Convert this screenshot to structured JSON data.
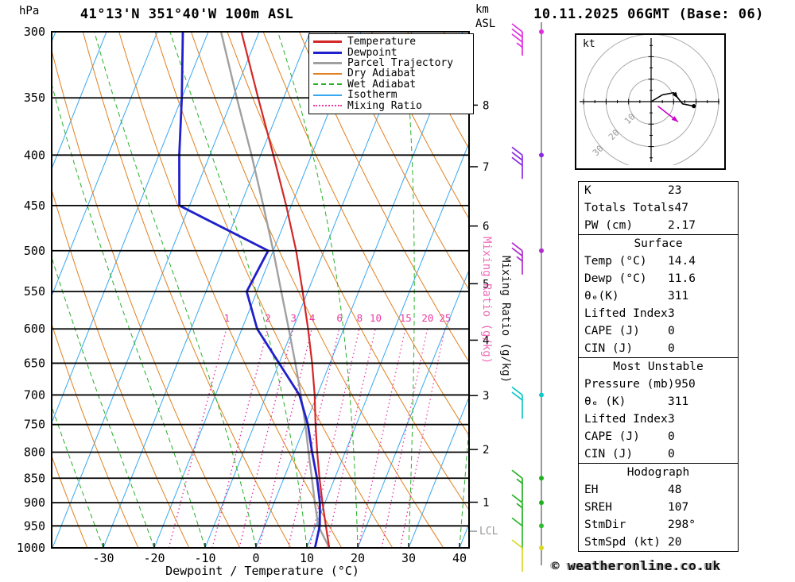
{
  "page": {
    "title_left": "41°13'N 351°40'W 100m ASL",
    "title_right": "10.11.2025 06GMT (Base: 06)",
    "pressure_unit": "hPa",
    "km_unit": "km",
    "asl_label": "ASL",
    "copyright": "© weatheronline.co.uk"
  },
  "axes": {
    "pressure_ticks": [
      300,
      350,
      400,
      450,
      500,
      550,
      600,
      650,
      700,
      750,
      800,
      850,
      900,
      950,
      1000
    ],
    "temperature_ticks": [
      -30,
      -20,
      -10,
      0,
      10,
      20,
      30,
      40
    ],
    "x_axis_label": "Dewpoint / Temperature (°C)",
    "km_ticks": [
      {
        "km": 1,
        "hpa": 899
      },
      {
        "km": 2,
        "hpa": 795
      },
      {
        "km": 3,
        "hpa": 701
      },
      {
        "km": 4,
        "hpa": 616
      },
      {
        "km": 5,
        "hpa": 540
      },
      {
        "km": 6,
        "hpa": 472
      },
      {
        "km": 7,
        "hpa": 411
      },
      {
        "km": 8,
        "hpa": 356
      }
    ],
    "mixing_ratio_lines": [
      1,
      2,
      3,
      4,
      6,
      8,
      10,
      15,
      20,
      25
    ],
    "mixing_ratio_axis_label": "Mixing Ratio (g/kg)",
    "lcl": {
      "label": "LCL",
      "hpa": 962
    }
  },
  "chart_data": {
    "type": "line",
    "variant": "skew-t log-p sounding",
    "pressure_range_hpa": [
      300,
      1000
    ],
    "temperature_range_c": [
      -40,
      42
    ],
    "grid": "on",
    "series": [
      {
        "name": "Temperature",
        "color": "#d42727",
        "points_p_c": [
          [
            1000,
            14.4
          ],
          [
            950,
            12.0
          ],
          [
            900,
            9.5
          ],
          [
            850,
            7.0
          ],
          [
            800,
            4.5
          ],
          [
            750,
            2.0
          ],
          [
            700,
            -0.5
          ],
          [
            650,
            -3.5
          ],
          [
            600,
            -7.0
          ],
          [
            550,
            -11.0
          ],
          [
            500,
            -15.5
          ],
          [
            450,
            -21.0
          ],
          [
            400,
            -27.5
          ],
          [
            350,
            -35.0
          ],
          [
            300,
            -43.5
          ]
        ]
      },
      {
        "name": "Dewpoint",
        "color": "#2020cc",
        "points_p_c": [
          [
            1000,
            11.6
          ],
          [
            950,
            10.8
          ],
          [
            900,
            9.0
          ],
          [
            850,
            6.5
          ],
          [
            800,
            3.5
          ],
          [
            750,
            0.5
          ],
          [
            700,
            -3.5
          ],
          [
            650,
            -10.0
          ],
          [
            600,
            -17.0
          ],
          [
            550,
            -22.0
          ],
          [
            500,
            -21.0
          ],
          [
            450,
            -42.0
          ],
          [
            400,
            -46.0
          ],
          [
            350,
            -50.0
          ],
          [
            300,
            -55.0
          ]
        ]
      },
      {
        "name": "Parcel Trajectory",
        "color": "#a0a0a0",
        "points_p_c": [
          [
            1000,
            14.4
          ],
          [
            950,
            10.5
          ],
          [
            900,
            8.0
          ],
          [
            850,
            5.5
          ],
          [
            800,
            2.8
          ],
          [
            750,
            0.0
          ],
          [
            700,
            -3.2
          ],
          [
            650,
            -6.8
          ],
          [
            600,
            -10.8
          ],
          [
            550,
            -15.2
          ],
          [
            500,
            -20.0
          ],
          [
            450,
            -25.5
          ],
          [
            400,
            -31.8
          ],
          [
            350,
            -39.2
          ],
          [
            300,
            -47.5
          ]
        ]
      }
    ],
    "background_lines": {
      "isotherms_c": {
        "min": -120,
        "max": 40,
        "step": 10,
        "color": "#38a8f0"
      },
      "dry_adiabats_k": {
        "min": 240,
        "max": 460,
        "step": 10,
        "color": "#e0801f"
      },
      "wet_adiabats_c": {
        "min": -60,
        "max": 40,
        "step": 10,
        "color": "#28b028"
      },
      "mixing_ratio_color": "#ea3aa2",
      "grid_color": "#000000"
    }
  },
  "legend": {
    "items": [
      {
        "label": "Temperature",
        "color": "#d42727",
        "style": "solid",
        "weight": 3
      },
      {
        "label": "Dewpoint",
        "color": "#2020cc",
        "style": "solid",
        "weight": 3
      },
      {
        "label": "Parcel Trajectory",
        "color": "#a0a0a0",
        "style": "solid",
        "weight": 3
      },
      {
        "label": "Dry Adiabat",
        "color": "#e0801f",
        "style": "solid",
        "weight": 2
      },
      {
        "label": "Wet Adiabat",
        "color": "#28b028",
        "style": "dashed",
        "weight": 2
      },
      {
        "label": "Isotherm",
        "color": "#38a8f0",
        "style": "solid",
        "weight": 2
      },
      {
        "label": "Mixing Ratio",
        "color": "#ea3aa2",
        "style": "dotted",
        "weight": 2
      }
    ]
  },
  "winds": {
    "barbs": [
      {
        "p": 300,
        "color": "#e02ae0",
        "full": 3,
        "half": 1
      },
      {
        "p": 400,
        "color": "#8a2ae0",
        "full": 3,
        "half": 0
      },
      {
        "p": 500,
        "color": "#b02ad0",
        "full": 2,
        "half": 1
      },
      {
        "p": 700,
        "color": "#10c8c8",
        "full": 2,
        "half": 0
      },
      {
        "p": 850,
        "color": "#20b020",
        "full": 1,
        "half": 1
      },
      {
        "p": 900,
        "color": "#20b020",
        "full": 1,
        "half": 1
      },
      {
        "p": 950,
        "color": "#30bb30",
        "full": 1,
        "half": 0
      },
      {
        "p": 1000,
        "color": "#d8d820",
        "full": 1,
        "half": 0
      }
    ]
  },
  "hodograph": {
    "unit": "kt",
    "rings_kt": [
      10,
      20,
      30
    ],
    "ring_labels": [
      "10",
      "20",
      "30"
    ],
    "trace_kt": [
      [
        0,
        0
      ],
      [
        5,
        3
      ],
      [
        10,
        4
      ],
      [
        14,
        -1
      ],
      [
        19,
        -2
      ]
    ],
    "storm_motion_kt": [
      [
        3,
        -2
      ],
      [
        12,
        -9
      ]
    ],
    "storm_color": "#cc00cc"
  },
  "panel": {
    "sections": [
      {
        "rows": [
          [
            "K",
            "23"
          ],
          [
            "Totals Totals",
            "47"
          ],
          [
            "PW (cm)",
            "2.17"
          ]
        ]
      },
      {
        "header": "Surface",
        "rows": [
          [
            "Temp (°C)",
            "14.4"
          ],
          [
            "Dewp (°C)",
            "11.6"
          ],
          [
            "θₑ(K)",
            "311"
          ],
          [
            "Lifted Index",
            "3"
          ],
          [
            "CAPE (J)",
            "0"
          ],
          [
            "CIN (J)",
            "0"
          ]
        ]
      },
      {
        "header": "Most Unstable",
        "rows": [
          [
            "Pressure (mb)",
            "950"
          ],
          [
            "θₑ (K)",
            "311"
          ],
          [
            "Lifted Index",
            "3"
          ],
          [
            "CAPE (J)",
            "0"
          ],
          [
            "CIN (J)",
            "0"
          ]
        ]
      },
      {
        "header": "Hodograph",
        "rows": [
          [
            "EH",
            "48"
          ],
          [
            "SREH",
            "107"
          ],
          [
            "StmDir",
            "298°"
          ],
          [
            "StmSpd (kt)",
            "20"
          ]
        ]
      }
    ]
  }
}
